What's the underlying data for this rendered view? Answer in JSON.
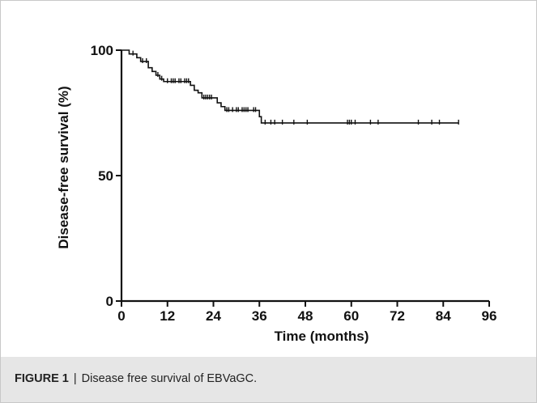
{
  "caption": {
    "label": "FIGURE 1",
    "separator": "|",
    "text": "Disease free survival of EBVaGC."
  },
  "chart_data": {
    "type": "line",
    "title": "",
    "xlabel": "Time (months)",
    "ylabel": "Disease-free survival (%)",
    "xlim": [
      0,
      96
    ],
    "ylim": [
      0,
      100
    ],
    "x_ticks": [
      0,
      12,
      24,
      36,
      48,
      60,
      72,
      84,
      96
    ],
    "y_ticks": [
      0,
      50,
      100
    ],
    "x_tick_labels": [
      "0",
      "12",
      "24",
      "36",
      "48",
      "60",
      "72",
      "84",
      "96"
    ],
    "y_tick_labels": [
      "0",
      "50",
      "100"
    ],
    "grid": false,
    "line_color": "#111111",
    "series": [
      {
        "step": [
          [
            0,
            100
          ],
          [
            2,
            98.5
          ],
          [
            4,
            97
          ],
          [
            5,
            95.5
          ],
          [
            7,
            93
          ],
          [
            8,
            91.5
          ],
          [
            9,
            90
          ],
          [
            10,
            88.5
          ],
          [
            11,
            87.5
          ],
          [
            18,
            86
          ],
          [
            19,
            84
          ],
          [
            20,
            83
          ],
          [
            21,
            81
          ],
          [
            25,
            79
          ],
          [
            26,
            77.5
          ],
          [
            27,
            76
          ],
          [
            36,
            73.5
          ],
          [
            36.5,
            71
          ],
          [
            88,
            71
          ]
        ],
        "censored": [
          3,
          5.5,
          6.5,
          9.5,
          10.5,
          12,
          13,
          13.5,
          14,
          15,
          15.5,
          16.5,
          17,
          17.5,
          21.5,
          22,
          22.5,
          23,
          23.5,
          27.5,
          28,
          29,
          30,
          30.5,
          31.5,
          32,
          32.5,
          33,
          34.5,
          35,
          37.5,
          39,
          40,
          42,
          45,
          48.5,
          59,
          59.5,
          60,
          61,
          65,
          67,
          77.5,
          81,
          83,
          88
        ]
      }
    ]
  }
}
